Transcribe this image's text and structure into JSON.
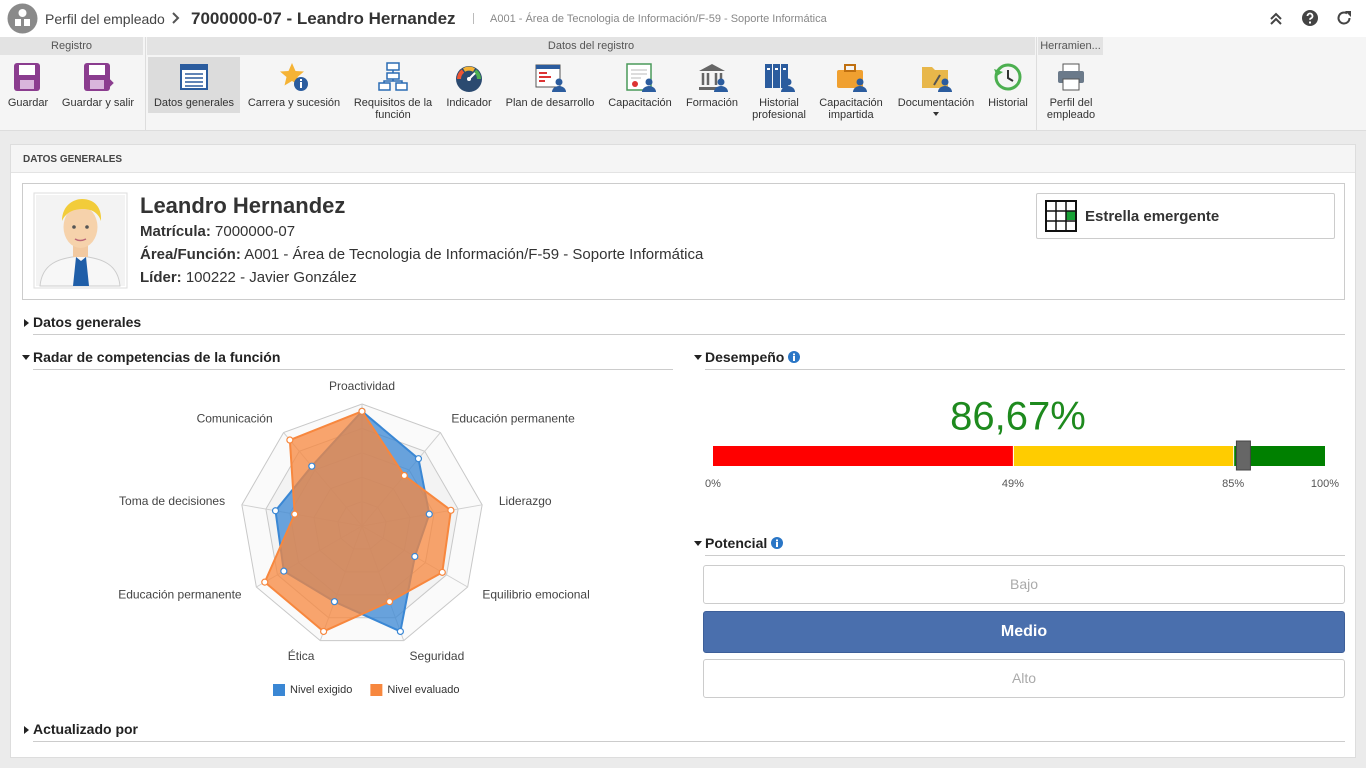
{
  "header": {
    "breadcrumb": "Perfil del empleado",
    "title": "7000000-07 - Leandro Hernandez",
    "subtitle": "A001 - Área de Tecnologia de Información/F-59 - Soporte Informática"
  },
  "toolbar": {
    "groups": [
      {
        "title": "Registro",
        "buttons": [
          "Guardar",
          "Guardar y salir"
        ]
      },
      {
        "title": "Datos del registro",
        "buttons": [
          "Datos generales",
          "Carrera y sucesión",
          "Requisitos de la función",
          "Indicador",
          "Plan de desarrollo",
          "Capacitación",
          "Formación",
          "Historial profesional",
          "Capacitación impartida",
          "Documentación",
          "Historial"
        ]
      },
      {
        "title": "Herramien...",
        "buttons": [
          "Perfil del empleado"
        ]
      }
    ]
  },
  "section_title": "DATOS GENERALES",
  "profile": {
    "name": "Leandro Hernandez",
    "fields": [
      {
        "label": "Matrícula:",
        "value": "7000000-07"
      },
      {
        "label": "Área/Función:",
        "value": "A001 - Área de Tecnologia de Información/F-59 - Soporte Informática"
      },
      {
        "label": "Líder:",
        "value": "100222 - Javier González"
      }
    ],
    "badge": "Estrella emergente"
  },
  "panels": {
    "general": "Datos generales",
    "performance": "Desempeño",
    "potential": "Potencial",
    "updated": "Actualizado por"
  },
  "chart_data": {
    "type": "radar",
    "title": "Radar de competencias de la función",
    "categories": [
      "Proactividad",
      "Educación permanente",
      "Liderazgo",
      "Equilibrio emocional",
      "Seguridad",
      "Ética",
      "Educación permanente",
      "Toma de decisiones",
      "Comunicación"
    ],
    "series": [
      {
        "name": "Nivel exigido",
        "color": "#3a87d4",
        "values": [
          4.7,
          3.6,
          2.8,
          2.5,
          4.6,
          3.3,
          3.7,
          3.6,
          3.2
        ]
      },
      {
        "name": "Nivel evaluado",
        "color": "#f7873e",
        "values": [
          4.7,
          2.7,
          3.7,
          3.8,
          3.3,
          4.6,
          4.6,
          2.8,
          4.6
        ]
      }
    ],
    "rlim": [
      0,
      5
    ],
    "rticks": [
      1,
      2,
      3,
      4,
      5
    ],
    "grid": true,
    "legend": "bottom"
  },
  "performance": {
    "value": 86.67,
    "value_label": "86,67%",
    "value_color": "#1e8a1e",
    "xlim": [
      0,
      100
    ],
    "ticks": [
      {
        "value": 0,
        "label": "0%"
      },
      {
        "value": 49,
        "label": "49%"
      },
      {
        "value": 85,
        "label": "85%"
      },
      {
        "value": 100,
        "label": "100%"
      }
    ],
    "colors": [
      "#ff0000",
      "#ffcc00",
      "#008000"
    ]
  },
  "potential": {
    "options": [
      "Bajo",
      "Medio",
      "Alto"
    ],
    "selected": 1
  }
}
